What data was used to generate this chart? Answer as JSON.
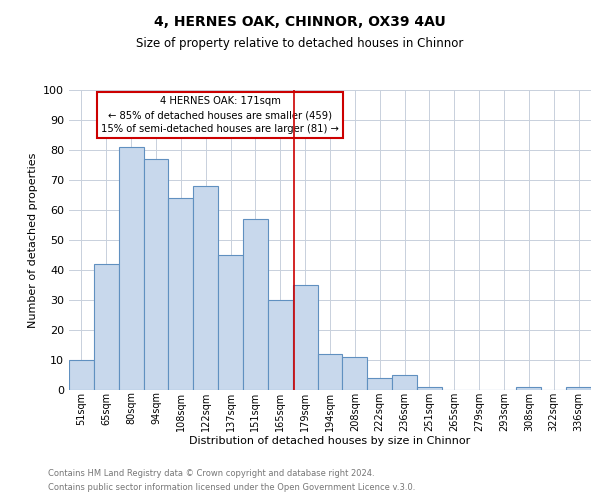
{
  "title": "4, HERNES OAK, CHINNOR, OX39 4AU",
  "subtitle": "Size of property relative to detached houses in Chinnor",
  "xlabel": "Distribution of detached houses by size in Chinnor",
  "ylabel": "Number of detached properties",
  "bar_labels": [
    "51sqm",
    "65sqm",
    "80sqm",
    "94sqm",
    "108sqm",
    "122sqm",
    "137sqm",
    "151sqm",
    "165sqm",
    "179sqm",
    "194sqm",
    "208sqm",
    "222sqm",
    "236sqm",
    "251sqm",
    "265sqm",
    "279sqm",
    "293sqm",
    "308sqm",
    "322sqm",
    "336sqm"
  ],
  "bar_values": [
    10,
    42,
    81,
    77,
    64,
    68,
    45,
    57,
    30,
    35,
    12,
    11,
    4,
    5,
    1,
    0,
    0,
    0,
    1,
    0,
    1
  ],
  "bar_color": "#c8d8ec",
  "bar_edge_color": "#6090c0",
  "ylim": [
    0,
    100
  ],
  "yticks": [
    0,
    10,
    20,
    30,
    40,
    50,
    60,
    70,
    80,
    90,
    100
  ],
  "vline_x": 8.57,
  "vline_color": "#cc0000",
  "annotation_title": "4 HERNES OAK: 171sqm",
  "annotation_line1": "← 85% of detached houses are smaller (459)",
  "annotation_line2": "15% of semi-detached houses are larger (81) →",
  "annotation_box_color": "#ffffff",
  "annotation_box_edge": "#cc0000",
  "footer1": "Contains HM Land Registry data © Crown copyright and database right 2024.",
  "footer2": "Contains public sector information licensed under the Open Government Licence v.3.0.",
  "background_color": "#ffffff",
  "grid_color": "#c8d0dc"
}
